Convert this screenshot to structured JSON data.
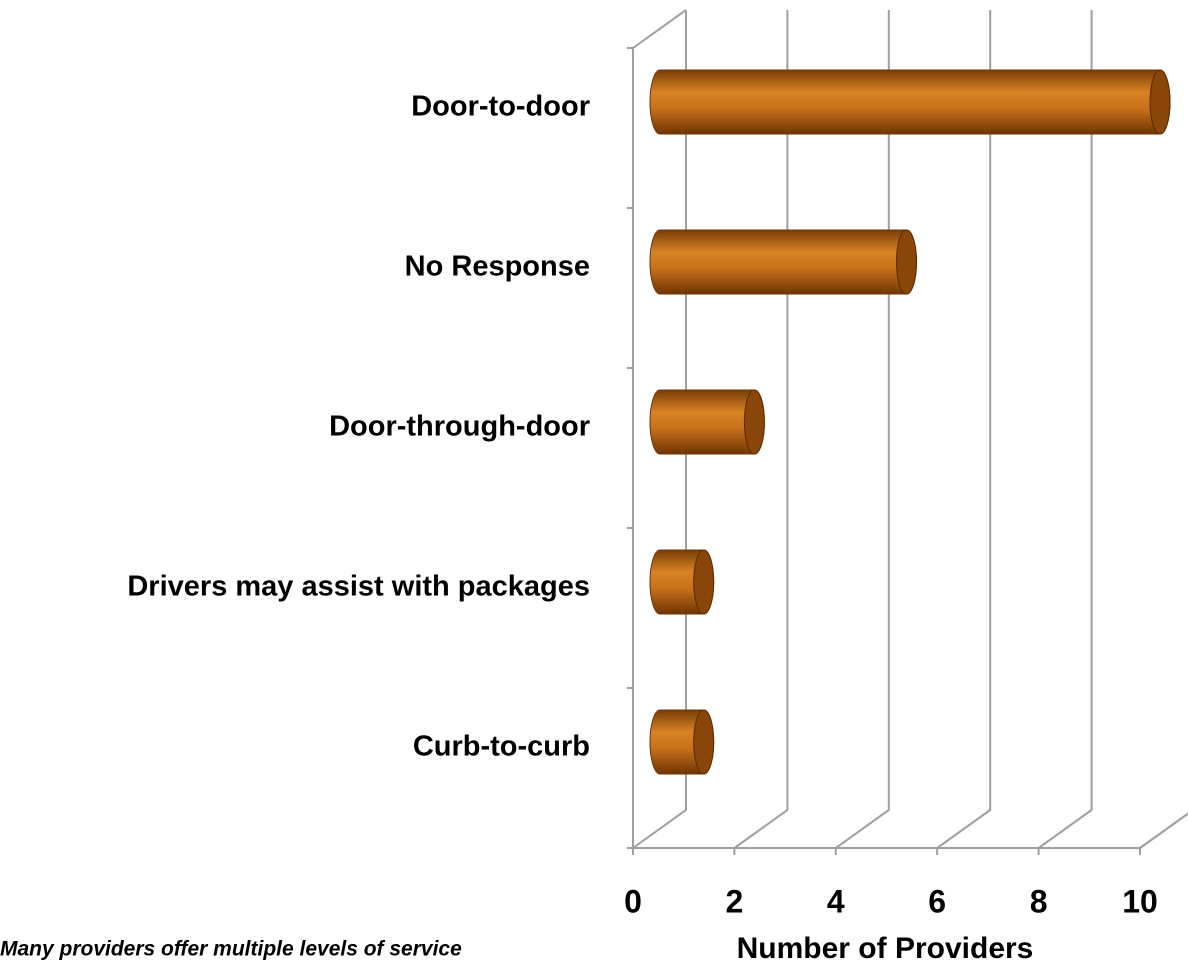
{
  "chart_data": {
    "type": "bar",
    "orientation": "horizontal",
    "categories": [
      "Door-to-door",
      "No Response",
      "Door-through-door",
      "Drivers may assist with packages",
      "Curb-to-curb"
    ],
    "values": [
      10,
      5,
      2,
      1,
      1
    ],
    "color": "#c8701a",
    "xlim": [
      0,
      10
    ],
    "xticks": [
      0,
      2,
      4,
      6,
      8,
      10
    ],
    "grid": true,
    "xlabel": "Number of Providers",
    "annotation": "Many providers offer multiple levels of service"
  }
}
